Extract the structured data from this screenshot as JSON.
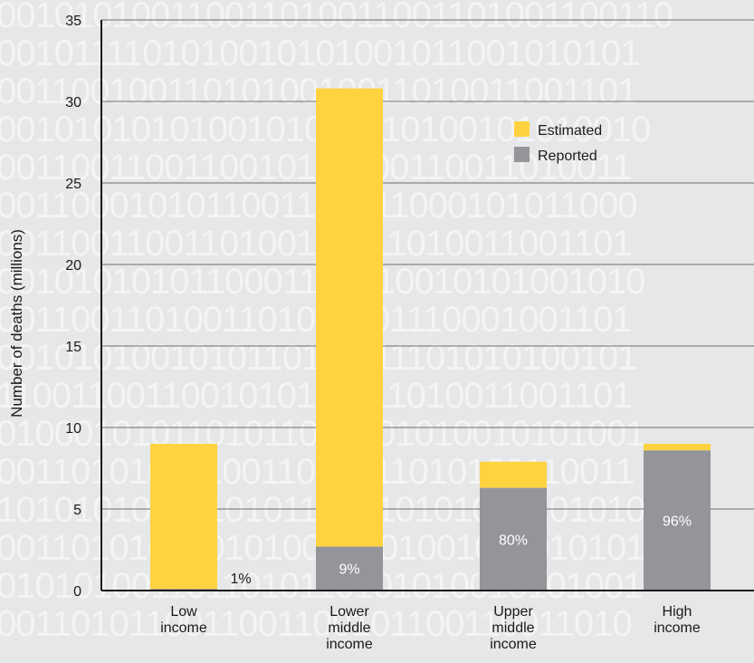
{
  "chart_data": {
    "type": "bar",
    "stacked": true,
    "categories": [
      [
        "Low",
        "income"
      ],
      [
        "Lower",
        "middle",
        "income"
      ],
      [
        "Upper",
        "middle",
        "income"
      ],
      [
        "High",
        "income"
      ]
    ],
    "series": [
      {
        "name": "Reported",
        "color": "#939598",
        "values": [
          0.1,
          2.7,
          6.3,
          8.6
        ]
      },
      {
        "name": "Estimated",
        "color": "#ffd340",
        "values": [
          8.9,
          28.1,
          1.6,
          0.4
        ]
      }
    ],
    "bar_labels": [
      "1%",
      "9%",
      "80%",
      "96%"
    ],
    "ylabel": "Number of deaths (millions)",
    "xlabel": "",
    "ylim": [
      0,
      35
    ],
    "yticks": [
      0,
      5,
      10,
      15,
      20,
      25,
      30,
      35
    ],
    "grid": true,
    "legend": {
      "placement": "top-right",
      "items": [
        {
          "name": "Estimated",
          "color": "#ffd340"
        },
        {
          "name": "Reported",
          "color": "#939598"
        }
      ]
    },
    "background_pattern": "binary-digits"
  }
}
